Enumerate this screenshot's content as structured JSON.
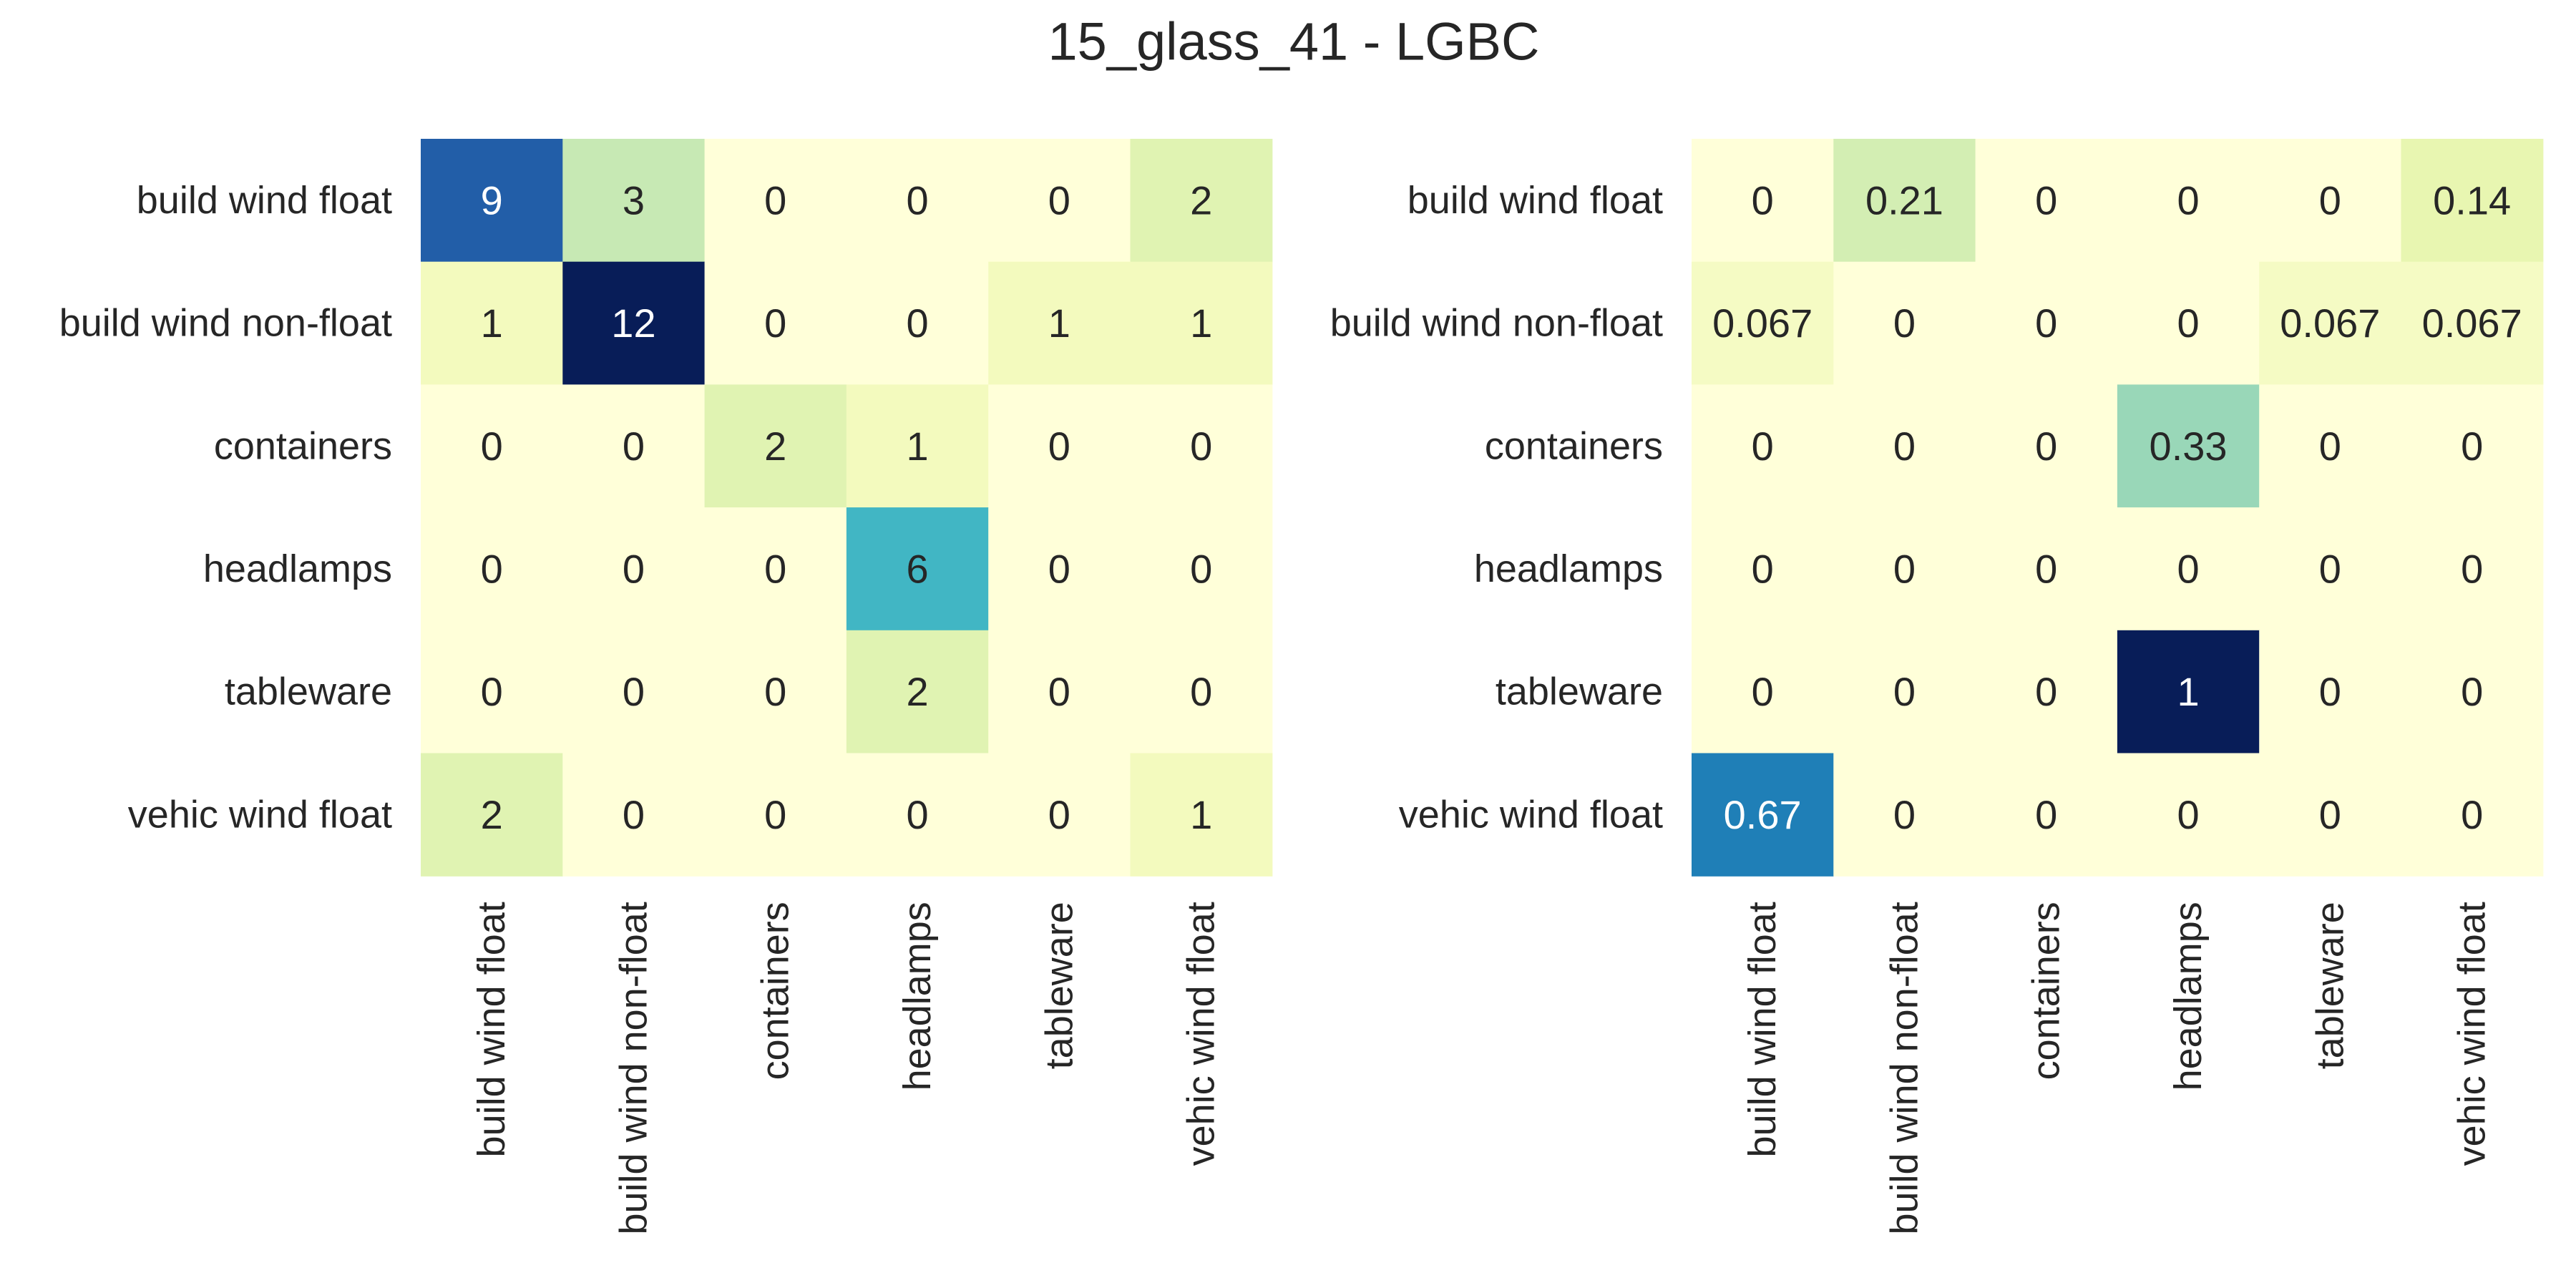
{
  "figure": {
    "title": "15_glass_41 - LGBC"
  },
  "chart_data": [
    {
      "type": "heatmap",
      "rows": [
        "build wind float",
        "build wind non-float",
        "containers",
        "headlamps",
        "tableware",
        "vehic wind float"
      ],
      "columns": [
        "build wind float",
        "build wind non-float",
        "containers",
        "headlamps",
        "tableware",
        "vehic wind float"
      ],
      "values": [
        [
          9,
          3,
          0,
          0,
          0,
          2
        ],
        [
          1,
          12,
          0,
          0,
          1,
          1
        ],
        [
          0,
          0,
          2,
          1,
          0,
          0
        ],
        [
          0,
          0,
          0,
          6,
          0,
          0
        ],
        [
          0,
          0,
          0,
          2,
          0,
          0
        ],
        [
          2,
          0,
          0,
          0,
          0,
          1
        ]
      ],
      "labels": [
        [
          "9",
          "3",
          "0",
          "0",
          "0",
          "2"
        ],
        [
          "1",
          "12",
          "0",
          "0",
          "1",
          "1"
        ],
        [
          "0",
          "0",
          "2",
          "1",
          "0",
          "0"
        ],
        [
          "0",
          "0",
          "0",
          "6",
          "0",
          "0"
        ],
        [
          "0",
          "0",
          "0",
          "2",
          "0",
          "0"
        ],
        [
          "2",
          "0",
          "0",
          "0",
          "0",
          "1"
        ]
      ],
      "vmin": 0,
      "vmax": 12,
      "colormap": "YlGnBu",
      "colorbar": false
    },
    {
      "type": "heatmap",
      "rows": [
        "build wind float",
        "build wind non-float",
        "containers",
        "headlamps",
        "tableware",
        "vehic wind float"
      ],
      "columns": [
        "build wind float",
        "build wind non-float",
        "containers",
        "headlamps",
        "tableware",
        "vehic wind float"
      ],
      "values": [
        [
          0,
          0.21,
          0,
          0,
          0,
          0.14
        ],
        [
          0.067,
          0,
          0,
          0,
          0.067,
          0.067
        ],
        [
          0,
          0,
          0,
          0.33,
          0,
          0
        ],
        [
          0,
          0,
          0,
          0,
          0,
          0
        ],
        [
          0,
          0,
          0,
          1,
          0,
          0
        ],
        [
          0.67,
          0,
          0,
          0,
          0,
          0
        ]
      ],
      "labels": [
        [
          "0",
          "0.21",
          "0",
          "0",
          "0",
          "0.14"
        ],
        [
          "0.067",
          "0",
          "0",
          "0",
          "0.067",
          "0.067"
        ],
        [
          "0",
          "0",
          "0",
          "0.33",
          "0",
          "0"
        ],
        [
          "0",
          "0",
          "0",
          "0",
          "0",
          "0"
        ],
        [
          "0",
          "0",
          "0",
          "1",
          "0",
          "0"
        ],
        [
          "0.67",
          "0",
          "0",
          "0",
          "0",
          "0"
        ]
      ],
      "vmin": 0,
      "vmax": 1,
      "colormap": "YlGnBu",
      "colorbar": false
    }
  ]
}
